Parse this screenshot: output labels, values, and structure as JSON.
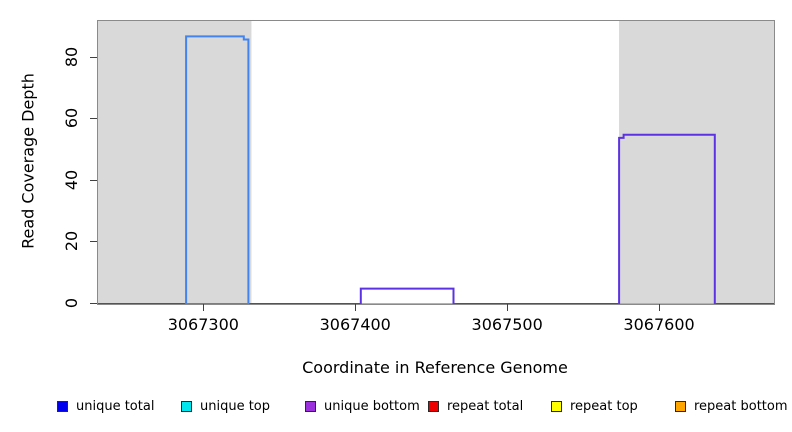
{
  "axes": {
    "x_label": "Coordinate in Reference Genome",
    "y_label": "Read Coverage Depth"
  },
  "chart_data": {
    "type": "area",
    "title": "",
    "xlabel": "Coordinate in Reference Genome",
    "ylabel": "Read Coverage Depth",
    "xlim": [
      3067230,
      3067675
    ],
    "ylim": [
      0,
      92
    ],
    "xticks": [
      3067300,
      3067400,
      3067500,
      3067600
    ],
    "yticks": [
      0,
      20,
      40,
      60,
      80
    ],
    "grid": false,
    "plot_background": "#ffffff",
    "shaded_regions": [
      {
        "name": "repeat-region-left",
        "x0": 3067230,
        "x1": 3067331,
        "color": "#d9d9d9"
      },
      {
        "name": "repeat-region-right",
        "x0": 3067573,
        "x1": 3067675,
        "color": "#d9d9d9"
      }
    ],
    "series": [
      {
        "name": "baseline-unique-total-bottom-at-0",
        "color": "#5138ec",
        "width": 2,
        "points": [
          [
            3067230,
            0
          ],
          [
            3067675,
            0
          ]
        ]
      },
      {
        "name": "repeat-total-at-0-under-left-peak",
        "color": "#e85050",
        "width": 2,
        "points": [
          [
            3067288,
            0
          ],
          [
            3067329,
            0
          ]
        ]
      },
      {
        "name": "unique-top-at-0-under-middle-peak",
        "color": "#90cb90",
        "width": 2,
        "points": [
          [
            3067403,
            0
          ],
          [
            3067464,
            0
          ]
        ]
      },
      {
        "name": "unique-top-at-0-under-right-peak",
        "color": "#90cb90",
        "width": 2,
        "points": [
          [
            3067573,
            0
          ],
          [
            3067636,
            0
          ]
        ]
      },
      {
        "name": "unique-total-left-peak-depth-87",
        "color": "#4184f0",
        "width": 2,
        "points": [
          [
            3067288,
            0
          ],
          [
            3067288,
            87
          ],
          [
            3067326,
            87
          ],
          [
            3067326,
            86
          ],
          [
            3067329,
            86
          ],
          [
            3067329,
            0
          ]
        ]
      },
      {
        "name": "unique-bottom-middle-peak-depth-5",
        "color": "#5c33e3",
        "width": 2,
        "points": [
          [
            3067403,
            0
          ],
          [
            3067403,
            5
          ],
          [
            3067464,
            5
          ],
          [
            3067464,
            0
          ]
        ]
      },
      {
        "name": "unique-bottom-right-peak-depth-55",
        "color": "#5c33e3",
        "width": 2,
        "points": [
          [
            3067573,
            0
          ],
          [
            3067573,
            54
          ],
          [
            3067576,
            54
          ],
          [
            3067576,
            55
          ],
          [
            3067636,
            55
          ],
          [
            3067636,
            0
          ]
        ]
      }
    ],
    "legend_position": "bottom"
  },
  "legend": {
    "items": [
      {
        "label": "unique total",
        "color": "#0000ee"
      },
      {
        "label": "unique top",
        "color": "#00e5ee"
      },
      {
        "label": "unique bottom",
        "color": "#9b30dd"
      },
      {
        "label": "repeat total",
        "color": "#ee0000"
      },
      {
        "label": "repeat top",
        "color": "#ffff00"
      },
      {
        "label": "repeat bottom",
        "color": "#ffa500"
      }
    ]
  }
}
